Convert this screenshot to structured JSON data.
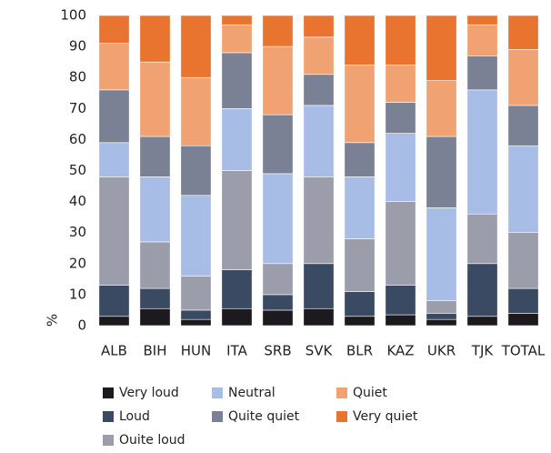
{
  "chart_data": {
    "type": "stacked_bar",
    "y_label": "%",
    "categories": [
      "ALB",
      "BIH",
      "HUN",
      "ITA",
      "SRB",
      "SVK",
      "BLR",
      "KAZ",
      "UKR",
      "TJK",
      "TOTAL"
    ],
    "series": [
      {
        "name": "Very loud",
        "color": "#1c1a1f",
        "values": [
          3,
          5.5,
          2,
          5.5,
          5,
          5.5,
          3,
          3.5,
          2,
          3,
          4
        ]
      },
      {
        "name": "Loud",
        "color": "#3b4a63",
        "values": [
          10,
          6.5,
          3,
          12.5,
          5,
          14.5,
          8,
          9.5,
          2,
          17,
          8
        ]
      },
      {
        "name": "Ouite loud",
        "color": "#9b9dab",
        "values": [
          35,
          15,
          11,
          32,
          10,
          28,
          17,
          27,
          4,
          16,
          18
        ]
      },
      {
        "name": "Neutral",
        "color": "#a8bde6",
        "values": [
          11,
          21,
          26,
          20,
          29,
          23,
          20,
          22,
          30,
          40,
          28
        ]
      },
      {
        "name": "Quite quiet",
        "color": "#7b8194",
        "values": [
          17,
          13,
          16,
          18,
          19,
          10,
          11,
          10,
          23,
          11,
          13
        ]
      },
      {
        "name": "Quiet",
        "color": "#f0a272",
        "values": [
          15,
          24,
          22,
          9,
          22,
          12,
          25,
          12,
          18,
          10,
          18
        ]
      },
      {
        "name": "Very quiet",
        "color": "#e8742f",
        "values": [
          9,
          15,
          20,
          3,
          10,
          7,
          16,
          16,
          21,
          3,
          11
        ]
      }
    ],
    "ylim": [
      0,
      100
    ],
    "yticks": [
      0,
      10,
      20,
      30,
      40,
      50,
      60,
      70,
      80,
      90,
      100
    ],
    "grid": false
  }
}
